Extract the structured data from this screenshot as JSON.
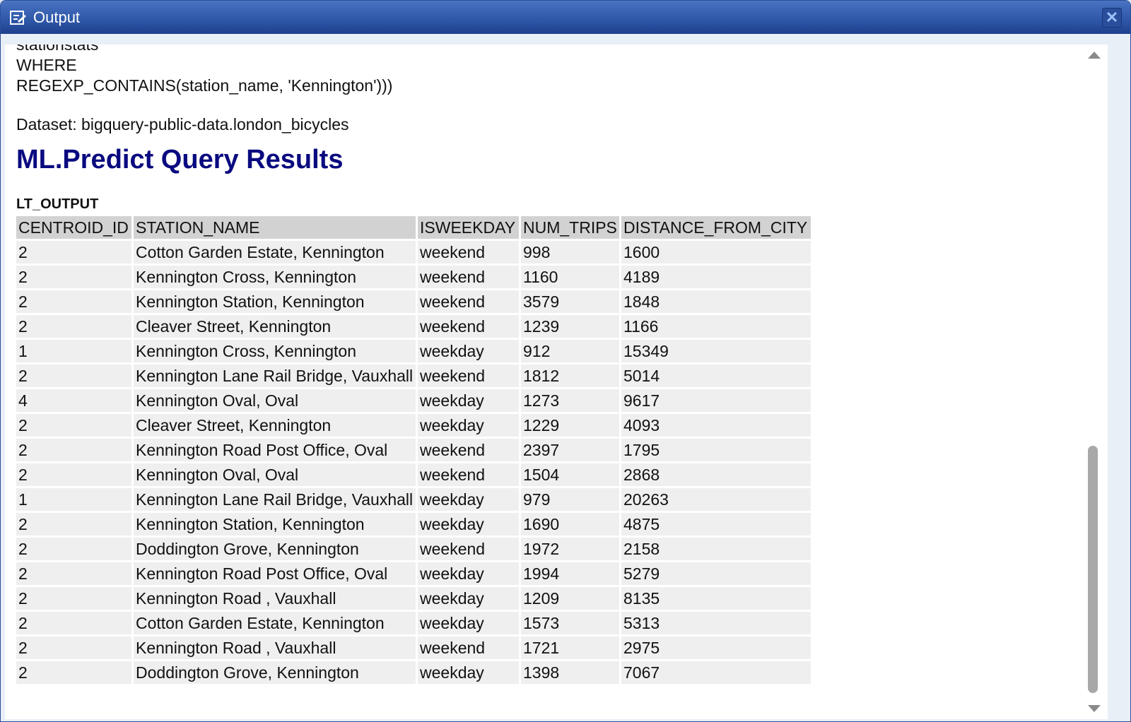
{
  "window": {
    "title": "Output",
    "title_icon": "output-panel-icon",
    "close_icon": "close-icon",
    "accent": "#2e56a8"
  },
  "query_tail": [
    "stationstats",
    "WHERE",
    "REGEXP_CONTAINS(station_name, 'Kennington')))"
  ],
  "dataset_line": "Dataset: bigquery-public-data.london_bicycles",
  "heading": "ML.Predict Query Results",
  "table": {
    "label": "LT_OUTPUT",
    "columns": [
      "CENTROID_ID",
      "STATION_NAME",
      "ISWEEKDAY",
      "NUM_TRIPS",
      "DISTANCE_FROM_CITY"
    ],
    "rows": [
      [
        "2",
        "Cotton Garden Estate, Kennington",
        "weekend",
        "998",
        "1600"
      ],
      [
        "2",
        "Kennington Cross, Kennington",
        "weekend",
        "1160",
        "4189"
      ],
      [
        "2",
        "Kennington Station, Kennington",
        "weekend",
        "3579",
        "1848"
      ],
      [
        "2",
        "Cleaver Street, Kennington",
        "weekend",
        "1239",
        "1166"
      ],
      [
        "1",
        "Kennington Cross, Kennington",
        "weekday",
        "912",
        "15349"
      ],
      [
        "2",
        "Kennington Lane Rail Bridge, Vauxhall",
        "weekend",
        "1812",
        "5014"
      ],
      [
        "4",
        "Kennington Oval, Oval",
        "weekday",
        "1273",
        "9617"
      ],
      [
        "2",
        "Cleaver Street, Kennington",
        "weekday",
        "1229",
        "4093"
      ],
      [
        "2",
        "Kennington Road Post Office, Oval",
        "weekend",
        "2397",
        "1795"
      ],
      [
        "2",
        "Kennington Oval, Oval",
        "weekend",
        "1504",
        "2868"
      ],
      [
        "1",
        "Kennington Lane Rail Bridge, Vauxhall",
        "weekday",
        "979",
        "20263"
      ],
      [
        "2",
        "Kennington Station, Kennington",
        "weekday",
        "1690",
        "4875"
      ],
      [
        "2",
        "Doddington Grove, Kennington",
        "weekend",
        "1972",
        "2158"
      ],
      [
        "2",
        "Kennington Road Post Office, Oval",
        "weekday",
        "1994",
        "5279"
      ],
      [
        "2",
        "Kennington Road , Vauxhall",
        "weekday",
        "1209",
        "8135"
      ],
      [
        "2",
        "Cotton Garden Estate, Kennington",
        "weekday",
        "1573",
        "5313"
      ],
      [
        "2",
        "Kennington Road , Vauxhall",
        "weekend",
        "1721",
        "2975"
      ],
      [
        "2",
        "Doddington Grove, Kennington",
        "weekday",
        "1398",
        "7067"
      ]
    ]
  }
}
